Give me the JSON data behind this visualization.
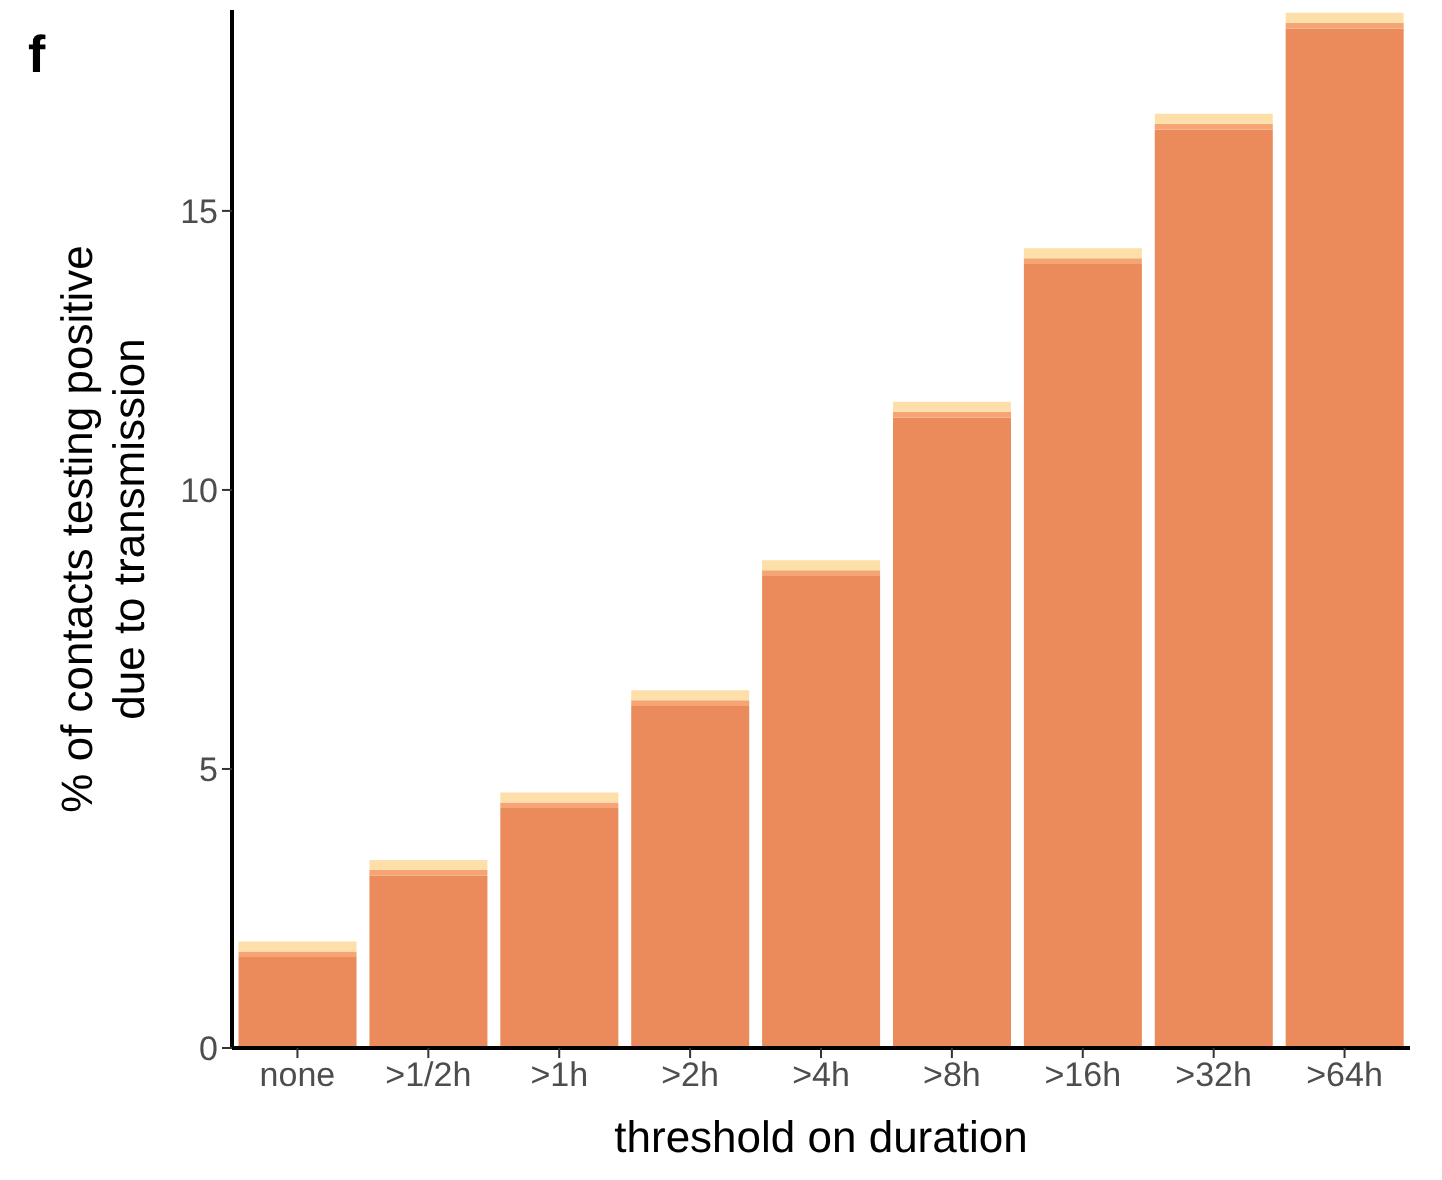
{
  "chart_data": {
    "type": "bar",
    "title": "f",
    "xlabel": "threshold on duration",
    "ylabel": "% of contacts testing positive\ndue to transmission",
    "categories": [
      "none",
      ">1/2h",
      ">1h",
      ">2h",
      ">4h",
      ">8h",
      ">16h",
      ">32h",
      ">64h"
    ],
    "stacked": true,
    "series": [
      {
        "color": "#eb8a5b",
        "values": [
          1.63,
          3.09,
          4.3,
          6.13,
          8.46,
          11.3,
          14.05,
          16.46,
          18.27
        ]
      },
      {
        "color": "#f7a474",
        "values": [
          0.1,
          0.1,
          0.1,
          0.1,
          0.1,
          0.1,
          0.1,
          0.1,
          0.1
        ]
      },
      {
        "color": "#fde0a9",
        "values": [
          0.18,
          0.18,
          0.18,
          0.18,
          0.18,
          0.18,
          0.18,
          0.18,
          0.18
        ]
      }
    ],
    "ylim": [
      0,
      18.6
    ],
    "yticks": [
      0,
      5,
      10,
      15
    ],
    "grid": false
  }
}
